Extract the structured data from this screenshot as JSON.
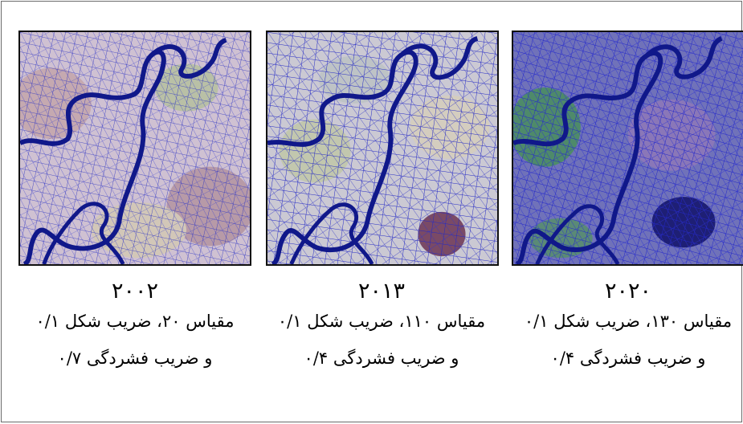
{
  "panels": [
    {
      "year": "۲۰۰۲",
      "line1": "مقیاس ۲۰، ضریب شکل ۰/۱",
      "line2": "و ضریب فشردگی ۰/۷",
      "image": "segmented-satellite-map-2002"
    },
    {
      "year": "۲۰۱۳",
      "line1": "مقیاس ۱۱۰، ضریب شکل ۰/۱",
      "line2": "و ضریب فشردگی ۰/۴",
      "image": "segmented-satellite-map-2013"
    },
    {
      "year": "۲۰۲۰",
      "line1": "مقیاس ۱۳۰، ضریب شکل ۰/۱",
      "line2": "و ضریب فشردگی ۰/۴",
      "image": "segmented-satellite-map-2020"
    }
  ],
  "colors": {
    "segment_lines": "#1f22b8",
    "river": "#10188a",
    "panel_bg_1": "#cdbfcf",
    "panel_bg_2": "#c9c9d2",
    "panel_bg_3": "#6d6fb8"
  }
}
